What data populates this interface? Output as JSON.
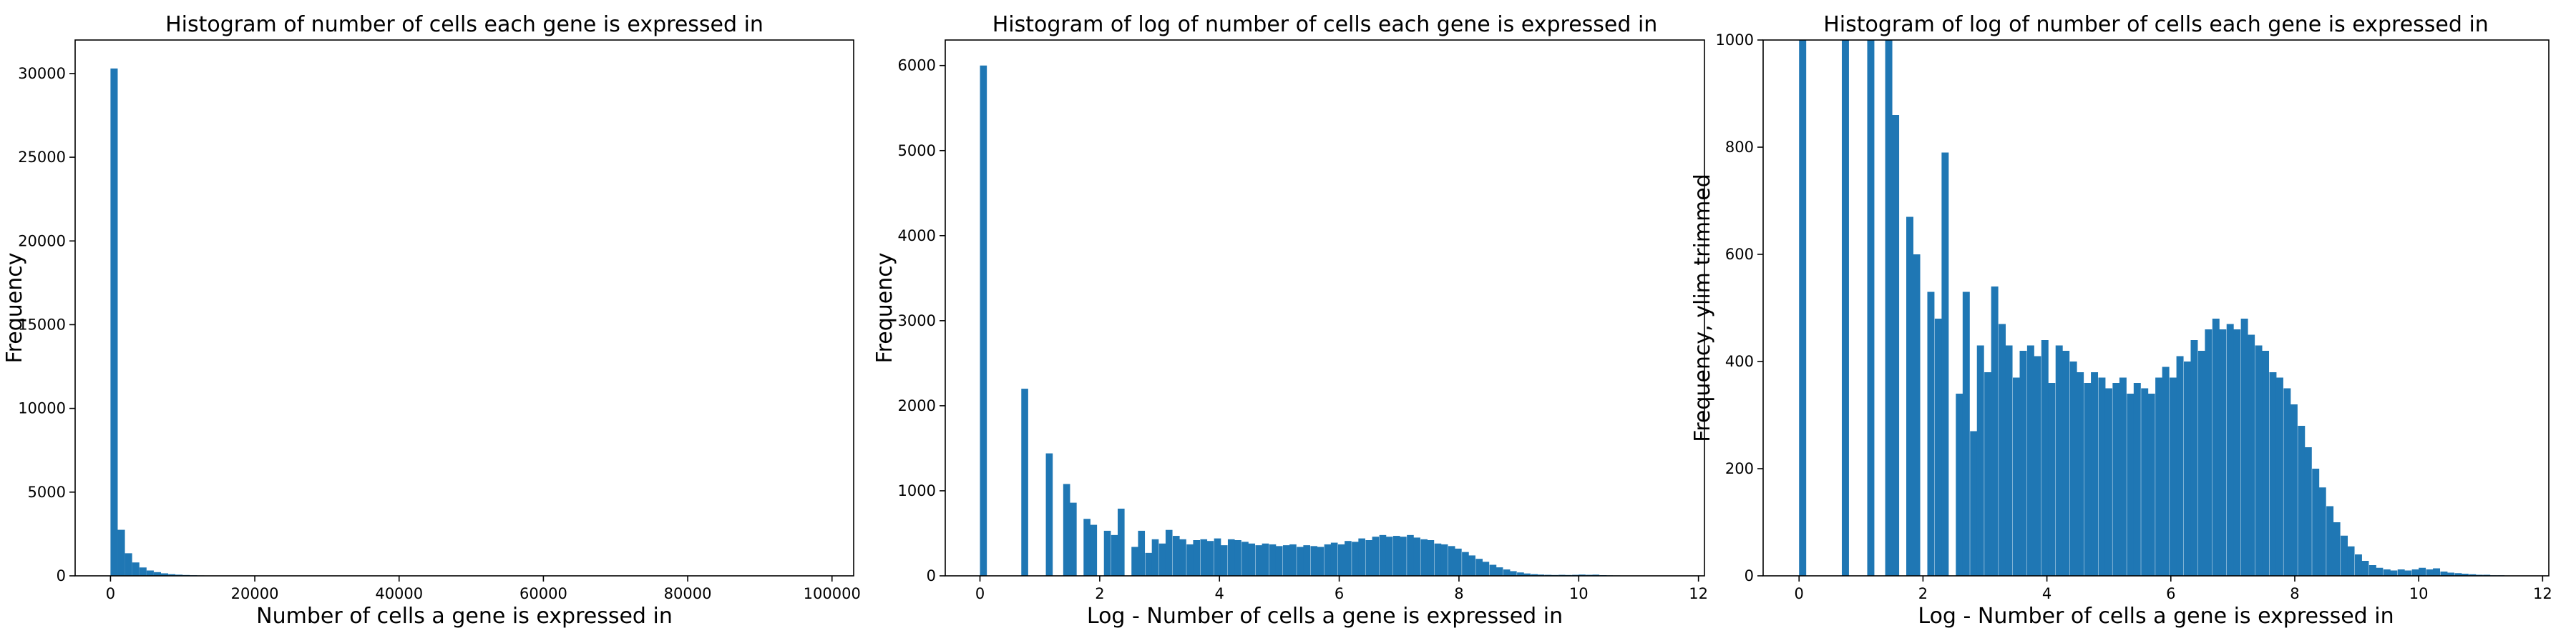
{
  "chart_data": [
    {
      "type": "bar",
      "title": "Histogram of number of cells each gene is expressed in",
      "xlabel": "Number of cells a gene is expressed in",
      "ylabel": "Frequency",
      "xlim": [
        -4900,
        103000
      ],
      "ylim": [
        0,
        32000
      ],
      "xticks": [
        0,
        20000,
        40000,
        60000,
        80000,
        100000
      ],
      "yticks": [
        0,
        5000,
        10000,
        15000,
        20000,
        25000,
        30000
      ],
      "bin_width": 1000,
      "bins": [
        {
          "x": 0,
          "y": 30300
        },
        {
          "x": 1000,
          "y": 2750
        },
        {
          "x": 2000,
          "y": 1350
        },
        {
          "x": 3000,
          "y": 800
        },
        {
          "x": 4000,
          "y": 500
        },
        {
          "x": 5000,
          "y": 320
        },
        {
          "x": 6000,
          "y": 220
        },
        {
          "x": 7000,
          "y": 150
        },
        {
          "x": 8000,
          "y": 100
        },
        {
          "x": 9000,
          "y": 70
        },
        {
          "x": 10000,
          "y": 50
        },
        {
          "x": 11000,
          "y": 35
        },
        {
          "x": 12000,
          "y": 25
        },
        {
          "x": 13000,
          "y": 18
        },
        {
          "x": 14000,
          "y": 12
        },
        {
          "x": 15000,
          "y": 8
        },
        {
          "x": 16000,
          "y": 5
        }
      ]
    },
    {
      "type": "bar",
      "title": "Histogram of log of number of cells each gene is expressed in",
      "xlabel": "Log - Number of cells a gene is expressed in",
      "ylabel": "Frequency",
      "xlim": [
        -0.58,
        12.1
      ],
      "ylim": [
        0,
        6300
      ],
      "xticks": [
        0,
        2,
        4,
        6,
        8,
        10,
        12
      ],
      "yticks": [
        0,
        1000,
        2000,
        3000,
        4000,
        5000,
        6000
      ],
      "bin_width": 0.115,
      "bins": [
        {
          "x": 0.0,
          "y": 6000
        },
        {
          "x": 0.69,
          "y": 2200
        },
        {
          "x": 1.1,
          "y": 1440
        },
        {
          "x": 1.39,
          "y": 1080
        },
        {
          "x": 1.5,
          "y": 860
        },
        {
          "x": 1.61,
          "y": 0
        },
        {
          "x": 1.73,
          "y": 670
        },
        {
          "x": 1.84,
          "y": 600
        },
        {
          "x": 2.07,
          "y": 530
        },
        {
          "x": 2.19,
          "y": 480
        },
        {
          "x": 2.3,
          "y": 790
        },
        {
          "x": 2.42,
          "y": 0
        },
        {
          "x": 2.53,
          "y": 340
        },
        {
          "x": 2.64,
          "y": 530
        },
        {
          "x": 2.76,
          "y": 270
        },
        {
          "x": 2.87,
          "y": 430
        },
        {
          "x": 2.99,
          "y": 380
        },
        {
          "x": 3.1,
          "y": 540
        },
        {
          "x": 3.22,
          "y": 470
        },
        {
          "x": 3.33,
          "y": 430
        },
        {
          "x": 3.45,
          "y": 370
        },
        {
          "x": 3.56,
          "y": 420
        },
        {
          "x": 3.68,
          "y": 430
        },
        {
          "x": 3.79,
          "y": 410
        },
        {
          "x": 3.91,
          "y": 440
        },
        {
          "x": 4.02,
          "y": 360
        },
        {
          "x": 4.14,
          "y": 430
        },
        {
          "x": 4.25,
          "y": 420
        },
        {
          "x": 4.37,
          "y": 400
        },
        {
          "x": 4.48,
          "y": 380
        },
        {
          "x": 4.6,
          "y": 360
        },
        {
          "x": 4.71,
          "y": 380
        },
        {
          "x": 4.83,
          "y": 370
        },
        {
          "x": 4.94,
          "y": 350
        },
        {
          "x": 5.06,
          "y": 360
        },
        {
          "x": 5.17,
          "y": 370
        },
        {
          "x": 5.29,
          "y": 340
        },
        {
          "x": 5.4,
          "y": 360
        },
        {
          "x": 5.52,
          "y": 350
        },
        {
          "x": 5.63,
          "y": 340
        },
        {
          "x": 5.75,
          "y": 370
        },
        {
          "x": 5.86,
          "y": 390
        },
        {
          "x": 5.98,
          "y": 370
        },
        {
          "x": 6.09,
          "y": 410
        },
        {
          "x": 6.21,
          "y": 400
        },
        {
          "x": 6.32,
          "y": 440
        },
        {
          "x": 6.44,
          "y": 420
        },
        {
          "x": 6.55,
          "y": 460
        },
        {
          "x": 6.67,
          "y": 480
        },
        {
          "x": 6.78,
          "y": 460
        },
        {
          "x": 6.9,
          "y": 470
        },
        {
          "x": 7.01,
          "y": 460
        },
        {
          "x": 7.13,
          "y": 480
        },
        {
          "x": 7.24,
          "y": 450
        },
        {
          "x": 7.36,
          "y": 430
        },
        {
          "x": 7.47,
          "y": 420
        },
        {
          "x": 7.59,
          "y": 380
        },
        {
          "x": 7.7,
          "y": 370
        },
        {
          "x": 7.82,
          "y": 350
        },
        {
          "x": 7.93,
          "y": 320
        },
        {
          "x": 8.05,
          "y": 280
        },
        {
          "x": 8.16,
          "y": 240
        },
        {
          "x": 8.28,
          "y": 200
        },
        {
          "x": 8.39,
          "y": 165
        },
        {
          "x": 8.51,
          "y": 130
        },
        {
          "x": 8.62,
          "y": 100
        },
        {
          "x": 8.74,
          "y": 75
        },
        {
          "x": 8.85,
          "y": 55
        },
        {
          "x": 8.97,
          "y": 40
        },
        {
          "x": 9.08,
          "y": 28
        },
        {
          "x": 9.2,
          "y": 20
        },
        {
          "x": 9.31,
          "y": 15
        },
        {
          "x": 9.43,
          "y": 12
        },
        {
          "x": 9.54,
          "y": 10
        },
        {
          "x": 9.66,
          "y": 12
        },
        {
          "x": 9.77,
          "y": 10
        },
        {
          "x": 9.89,
          "y": 12
        },
        {
          "x": 10.0,
          "y": 15
        },
        {
          "x": 10.12,
          "y": 12
        },
        {
          "x": 10.23,
          "y": 14
        },
        {
          "x": 10.35,
          "y": 8
        },
        {
          "x": 10.46,
          "y": 6
        },
        {
          "x": 10.58,
          "y": 5
        },
        {
          "x": 10.69,
          "y": 4
        },
        {
          "x": 10.81,
          "y": 3
        },
        {
          "x": 10.92,
          "y": 2
        },
        {
          "x": 11.04,
          "y": 2
        },
        {
          "x": 11.15,
          "y": 1
        },
        {
          "x": 11.27,
          "y": 1
        }
      ]
    },
    {
      "type": "bar",
      "title": "Histogram of log of number of cells each gene is expressed in",
      "xlabel": "Log - Number of cells a gene is expressed in",
      "ylabel": "Frequency, ylim trimmed",
      "xlim": [
        -0.58,
        12.1
      ],
      "ylim": [
        0,
        1000
      ],
      "xticks": [
        0,
        2,
        4,
        6,
        8,
        10,
        12
      ],
      "yticks": [
        0,
        200,
        400,
        600,
        800,
        1000
      ],
      "bin_width": 0.115,
      "bins_ref": 1
    }
  ]
}
